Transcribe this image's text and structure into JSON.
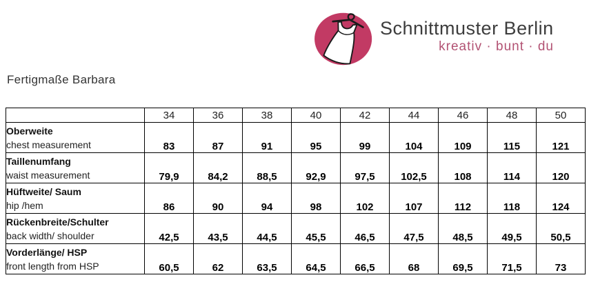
{
  "logo": {
    "brand": "Schnittmuster Berlin",
    "tagline": "kreativ · bunt · du",
    "brand_color": "#3d3d3d",
    "accent_color": "#c23a64",
    "tagline_color": "#b25273",
    "icon": "dress-on-hanger-icon"
  },
  "page_title": "Fertigmaße Barbara",
  "table": {
    "size_columns": [
      "34",
      "36",
      "38",
      "40",
      "42",
      "44",
      "46",
      "48",
      "50"
    ],
    "rows": [
      {
        "label_de": "Oberweite",
        "label_en": "chest measurement",
        "values": [
          "83",
          "87",
          "91",
          "95",
          "99",
          "104",
          "109",
          "115",
          "121"
        ]
      },
      {
        "label_de": "Taillenumfang",
        "label_en": "waist measurement",
        "values": [
          "79,9",
          "84,2",
          "88,5",
          "92,9",
          "97,5",
          "102,5",
          "108",
          "114",
          "120"
        ]
      },
      {
        "label_de": "Hüftweite/ Saum",
        "label_en": "hip /hem",
        "values": [
          "86",
          "90",
          "94",
          "98",
          "102",
          "107",
          "112",
          "118",
          "124"
        ]
      },
      {
        "label_de": "Rückenbreite/Schulter",
        "label_en": "back width/ shoulder",
        "values": [
          "42,5",
          "43,5",
          "44,5",
          "45,5",
          "46,5",
          "47,5",
          "48,5",
          "49,5",
          "50,5"
        ]
      },
      {
        "label_de": "Vorderlänge/ HSP",
        "label_en": "front length from HSP",
        "values": [
          "60,5",
          "62",
          "63,5",
          "64,5",
          "66,5",
          "68",
          "69,5",
          "71,5",
          "73"
        ]
      }
    ]
  }
}
